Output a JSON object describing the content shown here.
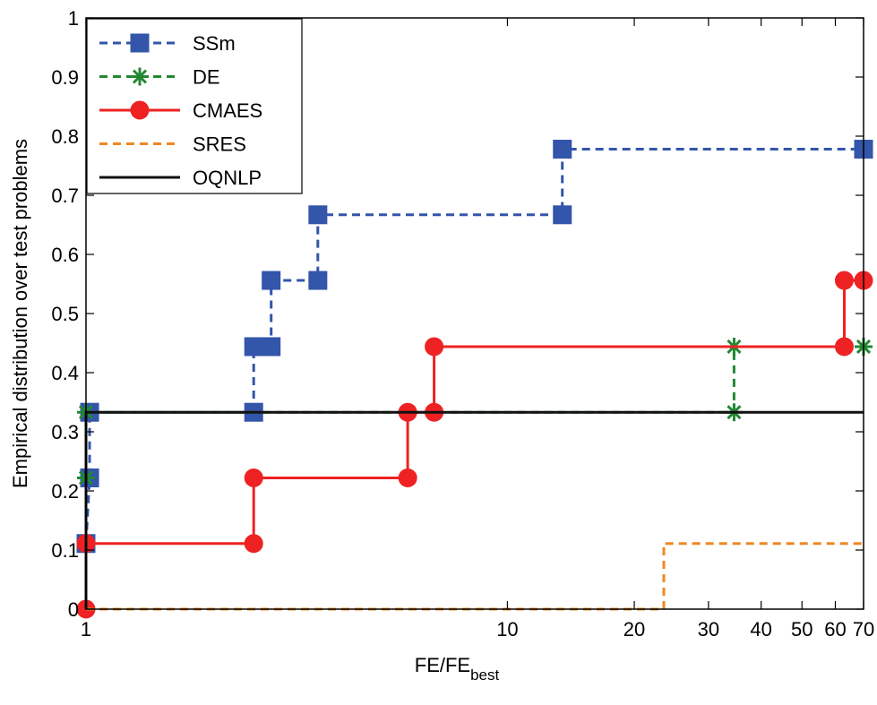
{
  "chart_data": {
    "type": "line",
    "title": "",
    "xlabel": "FE/FE",
    "xlabel_subscript": "best",
    "ylabel": "Empirical distribution over test problems",
    "x_scale": "log",
    "xlim": [
      1,
      70
    ],
    "ylim": [
      0,
      1
    ],
    "grid": false,
    "legend_position": "top-left",
    "x_ticks": [
      1,
      10,
      20,
      30,
      40,
      50,
      60,
      70
    ],
    "x_tick_labels": [
      "1",
      "10",
      "20",
      "30",
      "40",
      "50",
      "60",
      "70"
    ],
    "y_ticks": [
      0,
      0.1,
      0.2,
      0.3,
      0.4,
      0.5,
      0.6,
      0.7,
      0.8,
      0.9,
      1
    ],
    "y_tick_labels": [
      "0",
      "0.1",
      "0.2",
      "0.3",
      "0.4",
      "0.5",
      "0.6",
      "0.7",
      "0.8",
      "0.9",
      "1"
    ],
    "series": [
      {
        "name": "SSm",
        "color": "#3355aa",
        "line": "dashed",
        "marker": "square",
        "x": [
          1,
          1.02,
          1.02,
          2.5,
          2.5,
          2.75,
          2.75,
          3.55,
          3.55,
          13.5,
          13.5,
          70
        ],
        "y": [
          0.111,
          0.222,
          0.333,
          0.333,
          0.444,
          0.444,
          0.556,
          0.556,
          0.667,
          0.667,
          0.778,
          0.778
        ]
      },
      {
        "name": "DE",
        "color": "#228833",
        "line": "dashed",
        "marker": "asterisk",
        "x": [
          1,
          1,
          34.5,
          34.5,
          70
        ],
        "y": [
          0.222,
          0.333,
          0.333,
          0.444,
          0.444
        ]
      },
      {
        "name": "CMAES",
        "color": "#ee2222",
        "line": "solid",
        "marker": "circle",
        "x": [
          1,
          1,
          2.5,
          2.5,
          5.8,
          5.8,
          6.7,
          6.7,
          63,
          63,
          70
        ],
        "y": [
          0,
          0.111,
          0.111,
          0.222,
          0.222,
          0.333,
          0.333,
          0.444,
          0.444,
          0.556,
          0.556
        ]
      },
      {
        "name": "SRES",
        "color": "#ee8822",
        "line": "dashed",
        "marker": "none",
        "x": [
          1,
          23.5,
          23.5,
          70
        ],
        "y": [
          0,
          0,
          0.111,
          0.111
        ]
      },
      {
        "name": "OQNLP",
        "color": "#111111",
        "line": "solid",
        "marker": "none",
        "x": [
          1,
          1,
          70
        ],
        "y": [
          0,
          0.333,
          0.333
        ]
      }
    ]
  }
}
